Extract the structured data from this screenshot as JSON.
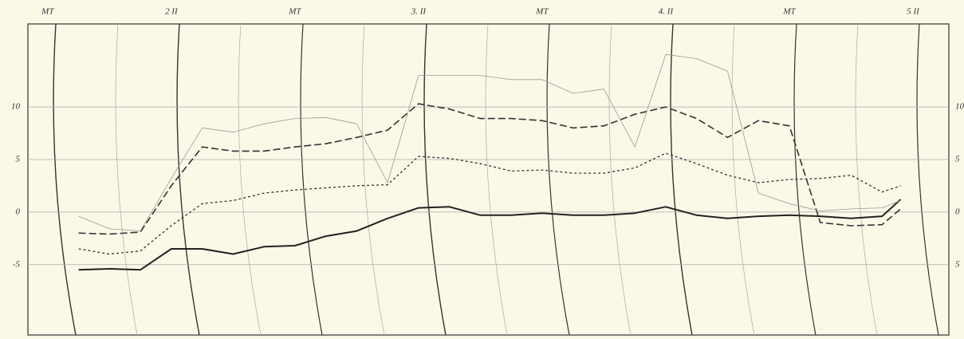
{
  "chart_data": {
    "type": "line",
    "xlim": [
      -0.16,
      7.29
    ],
    "xticks": [
      {
        "value": 0,
        "label": "MT"
      },
      {
        "value": 1,
        "label": "2 II"
      },
      {
        "value": 2,
        "label": "MT"
      },
      {
        "value": 3,
        "label": "3. II"
      },
      {
        "value": 4,
        "label": "MT"
      },
      {
        "value": 5,
        "label": "4. II"
      },
      {
        "value": 6,
        "label": "MT"
      },
      {
        "value": 7,
        "label": "5 II"
      }
    ],
    "ylim": [
      -11.7,
      17.9
    ],
    "yticks": [
      10,
      5,
      0,
      -5
    ],
    "y2lim": [
      -11.7,
      17.9
    ],
    "y2ticks": [
      10,
      5,
      0,
      {
        "value": -5,
        "label": "5"
      }
    ],
    "grid": true,
    "x": [
      0.25,
      0.5,
      0.75,
      1,
      1.25,
      1.5,
      1.75,
      2,
      2.25,
      2.5,
      2.75,
      3,
      3.25,
      3.5,
      3.75,
      4,
      4.25,
      4.5,
      4.75,
      5,
      5.25,
      5.5,
      5.75,
      6,
      6.25,
      6.5,
      6.75,
      6.9
    ],
    "series": [
      {
        "color": "#222",
        "dash": "solid",
        "width": 2,
        "values": [
          -5.5,
          -5.4,
          -5.5,
          -3.5,
          -3.5,
          -4,
          -3.3,
          -3.2,
          -2.3,
          -1.8,
          -0.6,
          0.4,
          0.5,
          -0.3,
          -0.3,
          -0.1,
          -0.3,
          -0.3,
          -0.1,
          0.5,
          -0.3,
          -0.6,
          -0.4,
          -0.3,
          -0.4,
          -0.6,
          -0.4,
          1.2
        ]
      },
      {
        "color": "#333",
        "dash": "dotted",
        "width": 1.3,
        "values": [
          -3.5,
          -4,
          -3.7,
          -1.3,
          0.8,
          1.1,
          1.8,
          2.1,
          2.3,
          2.5,
          2.6,
          5.3,
          5.1,
          4.6,
          3.9,
          4,
          3.7,
          3.7,
          4.2,
          5.6,
          4.6,
          3.5,
          2.8,
          3.1,
          3.2,
          3.5,
          1.9,
          2.5
        ]
      },
      {
        "color": "#333",
        "dash": "dashed",
        "width": 1.6,
        "values": [
          -2,
          -2.1,
          -1.9,
          2.5,
          6.2,
          5.8,
          5.8,
          6.2,
          6.5,
          7.1,
          7.8,
          10.3,
          9.8,
          8.9,
          8.9,
          8.7,
          8,
          8.2,
          9.3,
          10,
          8.9,
          7.1,
          8.7,
          8.2,
          -1,
          -1.3,
          -1.2,
          0.3
        ]
      },
      {
        "color": "#999",
        "dash": "solid",
        "width": 0.8,
        "values": [
          -0.4,
          -1.6,
          -1.8,
          3.2,
          8,
          7.6,
          8.4,
          8.9,
          9,
          8.4,
          2.8,
          13,
          13,
          13,
          12.6,
          12.6,
          11.3,
          11.7,
          6.2,
          15,
          14.6,
          13.4,
          1.8,
          0.8,
          0.1,
          0.3,
          0.4,
          1.1
        ]
      }
    ]
  }
}
